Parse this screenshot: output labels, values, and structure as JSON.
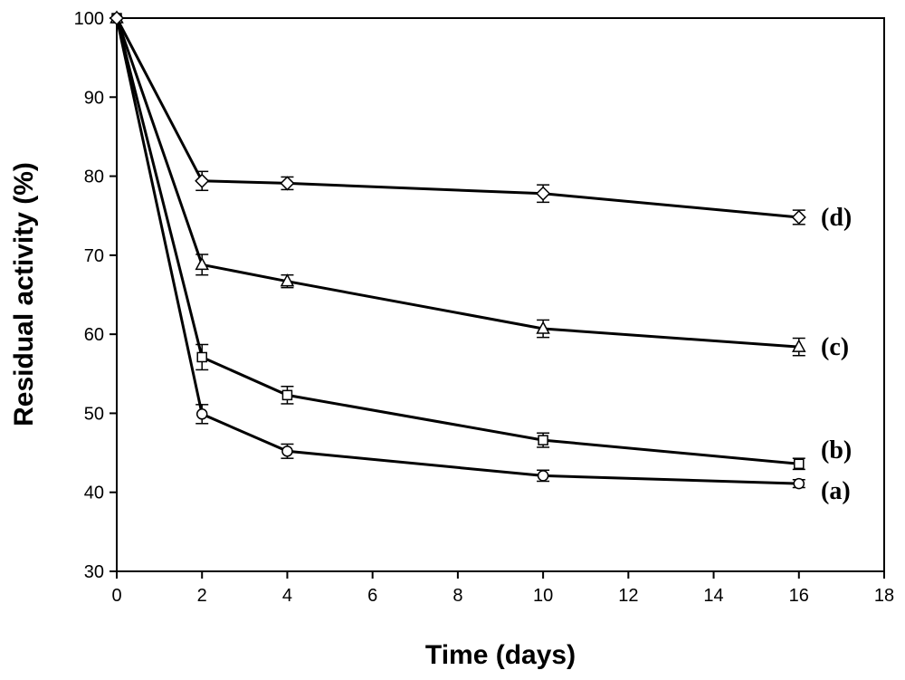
{
  "chart_data": {
    "type": "line",
    "title": "",
    "xlabel": "Time (days)",
    "ylabel": "Residual activity (%)",
    "xlim": [
      0,
      18
    ],
    "ylim": [
      30,
      100
    ],
    "xticks": [
      0,
      2,
      4,
      6,
      8,
      10,
      12,
      14,
      16,
      18
    ],
    "yticks": [
      30,
      40,
      50,
      60,
      70,
      80,
      90,
      100
    ],
    "grid": false,
    "x": [
      0,
      2,
      4,
      10,
      16
    ],
    "series": [
      {
        "name": "(a)",
        "marker": "circle",
        "values": [
          100,
          49.9,
          45.2,
          42.1,
          41.1
        ],
        "errors": [
          0,
          1.2,
          0.9,
          0.7,
          0.5
        ]
      },
      {
        "name": "(b)",
        "marker": "square",
        "values": [
          100,
          57.1,
          52.3,
          46.6,
          43.6
        ],
        "errors": [
          0,
          1.6,
          1.1,
          0.9,
          0.7
        ]
      },
      {
        "name": "(c)",
        "marker": "triangle",
        "values": [
          100,
          68.8,
          66.7,
          60.7,
          58.4
        ],
        "errors": [
          0,
          1.3,
          0.8,
          1.1,
          1.1
        ]
      },
      {
        "name": "(d)",
        "marker": "diamond",
        "values": [
          100,
          79.4,
          79.1,
          77.8,
          74.8
        ],
        "errors": [
          0,
          1.2,
          0.8,
          1.1,
          0.9
        ]
      }
    ]
  }
}
